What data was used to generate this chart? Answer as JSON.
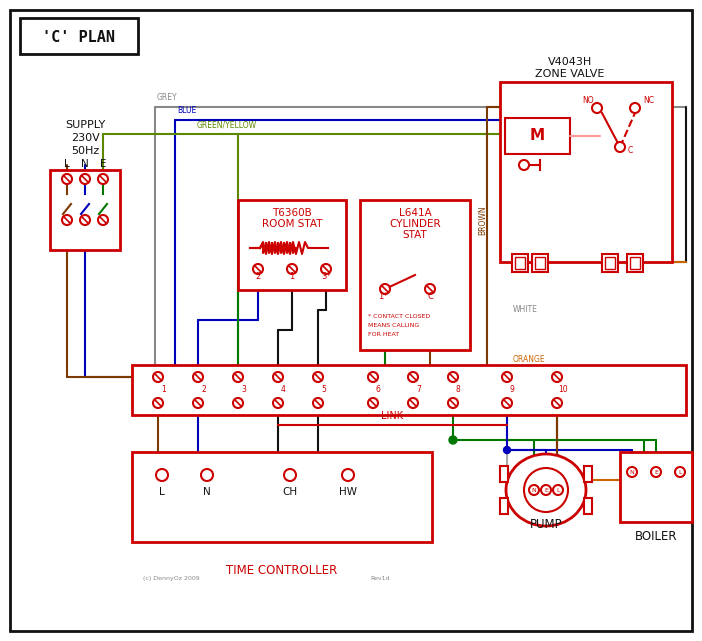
{
  "bg": "#ffffff",
  "red": "#cc0000",
  "blue": "#0000bb",
  "green": "#007700",
  "grey": "#888888",
  "brown": "#7b3a00",
  "orange": "#cc6600",
  "black": "#111111",
  "pink": "#ff9999",
  "gy": "#5b8800",
  "title": "'C' PLAN",
  "copyright": "(c) DennyOz 2009",
  "rev": "Rev1d"
}
